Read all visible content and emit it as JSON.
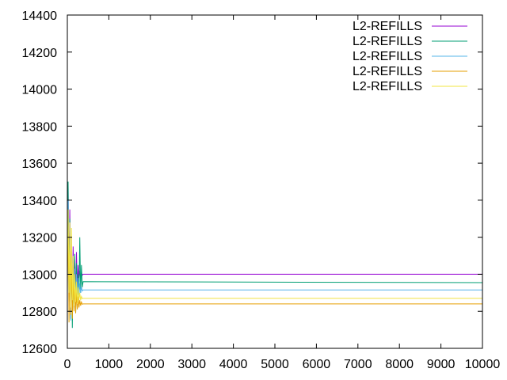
{
  "chart_data": {
    "type": "line",
    "title": "",
    "xlabel": "",
    "ylabel": "",
    "xlim": [
      0,
      10000
    ],
    "ylim": [
      12600,
      14400
    ],
    "x_ticks": [
      "0",
      "1000",
      "2000",
      "3000",
      "4000",
      "5000",
      "6000",
      "7000",
      "8000",
      "9000",
      "10000"
    ],
    "y_ticks": [
      "12600",
      "12800",
      "13000",
      "13200",
      "13400",
      "13600",
      "13800",
      "14000",
      "14200",
      "14400"
    ],
    "grid": false,
    "legend_position": "top-right",
    "series": [
      {
        "name": "L2-REFILLS",
        "color": "#9400d3",
        "steady": 13000,
        "points": [
          [
            0,
            13250
          ],
          [
            20,
            13480
          ],
          [
            40,
            12950
          ],
          [
            60,
            13350
          ],
          [
            80,
            12880
          ],
          [
            100,
            13200
          ],
          [
            120,
            12820
          ],
          [
            140,
            13150
          ],
          [
            160,
            12900
          ],
          [
            180,
            13080
          ],
          [
            200,
            12860
          ],
          [
            220,
            13120
          ],
          [
            240,
            12920
          ],
          [
            260,
            13050
          ],
          [
            280,
            12960
          ],
          [
            300,
            13020
          ],
          [
            320,
            12980
          ],
          [
            340,
            13010
          ],
          [
            360,
            12995
          ],
          [
            380,
            13000
          ],
          [
            10000,
            13000
          ]
        ]
      },
      {
        "name": "L2-REFILLS",
        "color": "#009e73",
        "steady": 12955,
        "points": [
          [
            0,
            13100
          ],
          [
            20,
            13500
          ],
          [
            40,
            12850
          ],
          [
            60,
            13300
          ],
          [
            80,
            12760
          ],
          [
            100,
            13150
          ],
          [
            120,
            12710
          ],
          [
            140,
            13090
          ],
          [
            160,
            12840
          ],
          [
            180,
            13110
          ],
          [
            200,
            12790
          ],
          [
            220,
            13060
          ],
          [
            240,
            12820
          ],
          [
            260,
            13000
          ],
          [
            280,
            12880
          ],
          [
            300,
            13200
          ],
          [
            320,
            12900
          ],
          [
            340,
            13050
          ],
          [
            360,
            12930
          ],
          [
            380,
            12960
          ],
          [
            10000,
            12955
          ]
        ]
      },
      {
        "name": "L2-REFILLS",
        "color": "#56b4e9",
        "steady": 12915,
        "points": [
          [
            0,
            12980
          ],
          [
            20,
            13400
          ],
          [
            40,
            12800
          ],
          [
            60,
            13250
          ],
          [
            80,
            12750
          ],
          [
            100,
            13100
          ],
          [
            120,
            12800
          ],
          [
            140,
            13060
          ],
          [
            160,
            12850
          ],
          [
            180,
            13030
          ],
          [
            200,
            12820
          ],
          [
            220,
            13000
          ],
          [
            240,
            12860
          ],
          [
            260,
            12980
          ],
          [
            280,
            12880
          ],
          [
            300,
            12950
          ],
          [
            320,
            12900
          ],
          [
            340,
            12930
          ],
          [
            360,
            12910
          ],
          [
            380,
            12915
          ],
          [
            10000,
            12915
          ]
        ]
      },
      {
        "name": "L2-REFILLS",
        "color": "#e69f00",
        "steady": 12840,
        "points": [
          [
            0,
            12900
          ],
          [
            20,
            13300
          ],
          [
            40,
            12740
          ],
          [
            60,
            13150
          ],
          [
            80,
            12780
          ],
          [
            100,
            13050
          ],
          [
            120,
            12760
          ],
          [
            140,
            12990
          ],
          [
            160,
            12800
          ],
          [
            180,
            12940
          ],
          [
            200,
            12790
          ],
          [
            220,
            12900
          ],
          [
            240,
            12810
          ],
          [
            260,
            12880
          ],
          [
            280,
            12820
          ],
          [
            300,
            12860
          ],
          [
            320,
            12830
          ],
          [
            340,
            12850
          ],
          [
            360,
            12838
          ],
          [
            380,
            12840
          ],
          [
            10000,
            12840
          ]
        ]
      },
      {
        "name": "L2-REFILLS",
        "color": "#f0e442",
        "steady": 12870,
        "points": [
          [
            0,
            13050
          ],
          [
            20,
            13350
          ],
          [
            40,
            12900
          ],
          [
            60,
            13280
          ],
          [
            80,
            12820
          ],
          [
            100,
            13250
          ],
          [
            120,
            12860
          ],
          [
            140,
            13100
          ],
          [
            160,
            12830
          ],
          [
            180,
            13000
          ],
          [
            200,
            12850
          ],
          [
            220,
            12960
          ],
          [
            240,
            12840
          ],
          [
            260,
            12930
          ],
          [
            280,
            12860
          ],
          [
            300,
            12900
          ],
          [
            320,
            12860
          ],
          [
            340,
            12880
          ],
          [
            360,
            12868
          ],
          [
            380,
            12870
          ],
          [
            10000,
            12870
          ]
        ]
      }
    ]
  }
}
